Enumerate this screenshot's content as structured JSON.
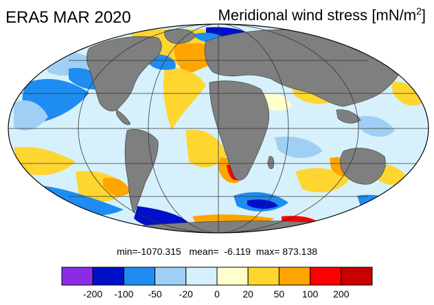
{
  "header": {
    "dataset": "ERA5 MAR 2020",
    "variable": "Meridional wind stress",
    "units_prefix": "[mN/m",
    "units_exp": "2",
    "units_suffix": "]"
  },
  "stats": {
    "min_label": "min=",
    "min": "-1070.315",
    "mean_label": "mean=",
    "mean": "-6.119",
    "max_label": "max=",
    "max": "873.138"
  },
  "colorbar": {
    "colors": [
      "#8b2be6",
      "#0010c8",
      "#1e8cf0",
      "#9fcff5",
      "#d6f1fb",
      "#ffffcc",
      "#ffd530",
      "#ffa500",
      "#ff0000",
      "#c80000"
    ],
    "tick_labels": [
      "-200",
      "-100",
      "-50",
      "-20",
      "0",
      "20",
      "50",
      "100",
      "200"
    ]
  },
  "map": {
    "projection": "Mollweide",
    "land_color": "#7f7f7f",
    "ocean_base_color": "#d6f1fb"
  }
}
